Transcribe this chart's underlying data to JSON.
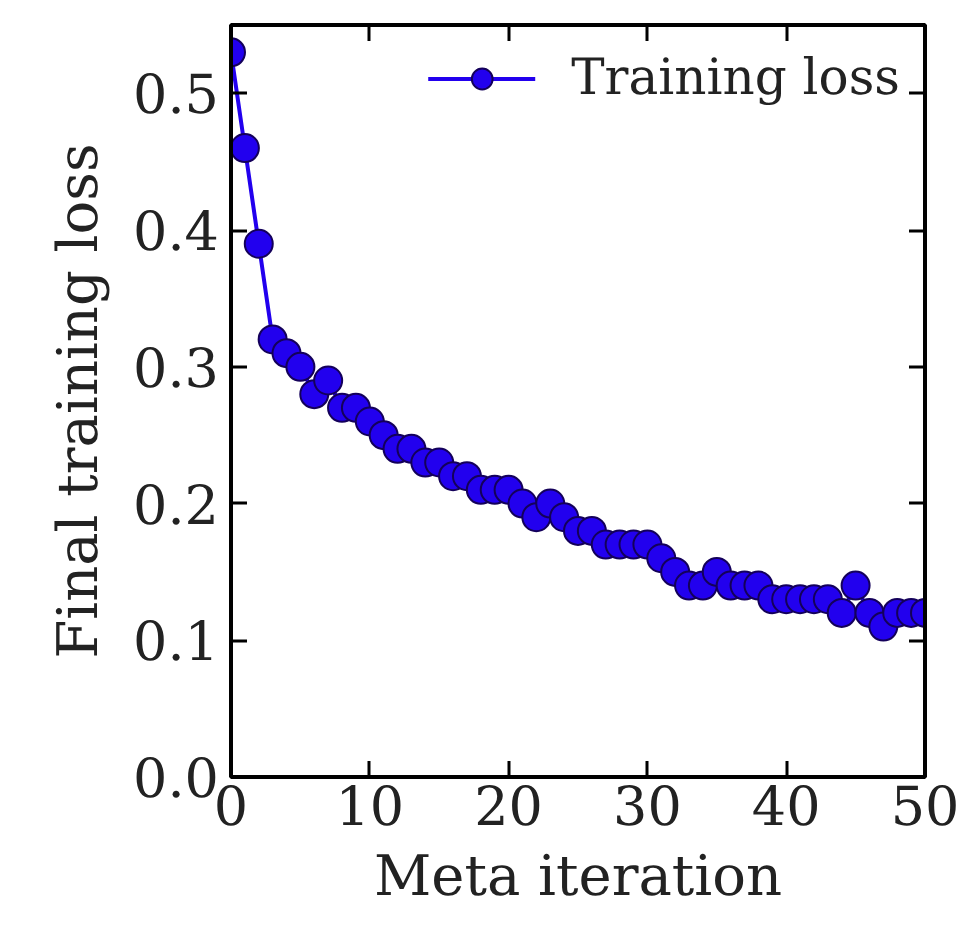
{
  "chart_data": {
    "type": "line",
    "xlabel": "Meta iteration",
    "ylabel": "Final training loss",
    "x": [
      0,
      1,
      2,
      3,
      4,
      5,
      6,
      7,
      8,
      9,
      10,
      11,
      12,
      13,
      14,
      15,
      16,
      17,
      18,
      19,
      20,
      21,
      22,
      23,
      24,
      25,
      26,
      27,
      28,
      29,
      30,
      31,
      32,
      33,
      34,
      35,
      36,
      37,
      38,
      39,
      40,
      41,
      42,
      43,
      44,
      45,
      46,
      47,
      48,
      49,
      50
    ],
    "series": [
      {
        "name": "Training loss",
        "color": "#2200ee",
        "values": [
          0.53,
          0.46,
          0.39,
          0.32,
          0.31,
          0.3,
          0.28,
          0.29,
          0.27,
          0.27,
          0.26,
          0.25,
          0.24,
          0.24,
          0.23,
          0.23,
          0.22,
          0.22,
          0.21,
          0.21,
          0.21,
          0.2,
          0.19,
          0.2,
          0.19,
          0.18,
          0.18,
          0.17,
          0.17,
          0.17,
          0.17,
          0.16,
          0.15,
          0.14,
          0.14,
          0.15,
          0.14,
          0.14,
          0.14,
          0.13,
          0.13,
          0.13,
          0.13,
          0.13,
          0.12,
          0.14,
          0.12,
          0.11,
          0.12,
          0.12,
          0.12
        ]
      }
    ],
    "xlim": [
      0,
      50
    ],
    "ylim": [
      0,
      0.55
    ],
    "xticks": [
      0,
      10,
      20,
      30,
      40,
      50
    ],
    "yticks": [
      {
        "value": 0,
        "label": "0.0"
      },
      0.1,
      0.2,
      0.3,
      0.4,
      0.5
    ],
    "legend": "top right",
    "marker": "circle",
    "line_style": "solid"
  }
}
